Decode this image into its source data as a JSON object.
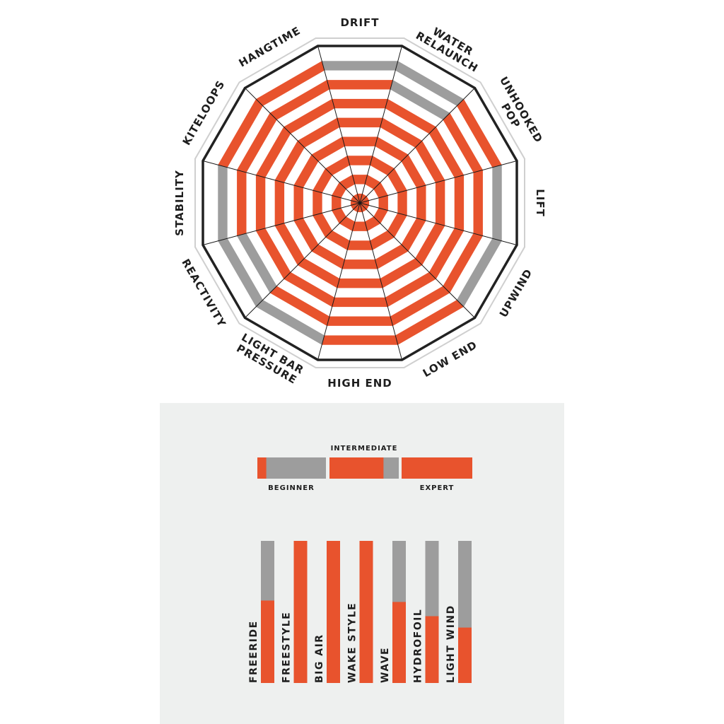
{
  "colors": {
    "accent": "#e8532d",
    "gray": "#9d9d9d",
    "stripe_white": "#ffffff",
    "outline": "#222222",
    "panel_bg": "#eef0ef"
  },
  "chart_data": [
    {
      "type": "radar",
      "title": "",
      "max": 16,
      "rings": 16,
      "axes": [
        "DRIFT",
        "WATER RELAUNCH",
        "UNHOOKED POP",
        "LIFT",
        "UPWIND",
        "LOW END",
        "HIGH END",
        "LIGHT BAR PRESSURE",
        "REACTIVITY",
        "STABILITY",
        "KITELOOPS",
        "HANGTIME"
      ],
      "values": [
        14,
        11,
        16,
        14,
        13,
        16,
        16,
        13,
        12,
        14,
        16,
        16
      ]
    },
    {
      "type": "bar",
      "title": "",
      "orientation": "horizontal-segments",
      "categories": [
        "BEGINNER",
        "INTERMEDIATE",
        "EXPERT"
      ],
      "values": [
        0.13,
        0.78,
        1.0
      ],
      "ylim": [
        0,
        1
      ]
    },
    {
      "type": "bar",
      "title": "",
      "categories": [
        "FREERIDE",
        "FREESTYLE",
        "BIG AIR",
        "WAKE STYLE",
        "WAVE",
        "HYDROFOIL",
        "LIGHT WIND"
      ],
      "values": [
        0.58,
        1.0,
        1.0,
        1.0,
        0.57,
        0.47,
        0.39
      ],
      "ylim": [
        0,
        1
      ]
    }
  ]
}
